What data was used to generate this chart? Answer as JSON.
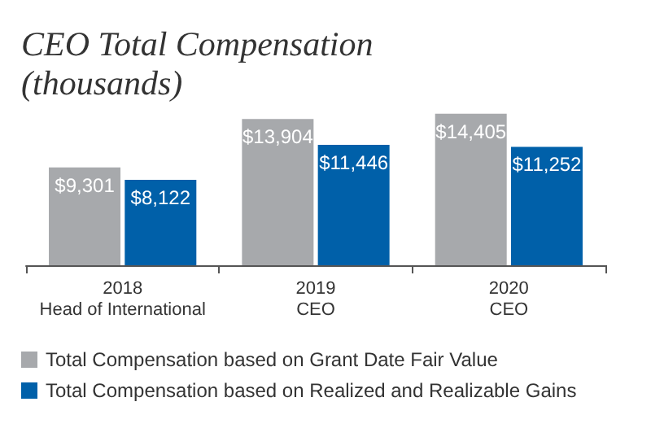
{
  "chart_data": {
    "type": "bar",
    "title": "CEO Total Compensation (thousands)",
    "categories": [
      "2018\nHead of International",
      "2019\nCEO",
      "2020\nCEO"
    ],
    "series": [
      {
        "name": "Total Compensation based on Grant Date Fair Value",
        "color": "#a7a9ac",
        "values": [
          9301,
          13904,
          14405
        ],
        "value_labels": [
          "$9,301",
          "$13,904",
          "$14,405"
        ]
      },
      {
        "name": "Total Compensation based on Realized and Realizable Gains",
        "color": "#0060a9",
        "values": [
          8122,
          11446,
          11252
        ],
        "value_labels": [
          "$8,122",
          "$11,446",
          "$11,252"
        ]
      }
    ],
    "legend": "bottom"
  }
}
